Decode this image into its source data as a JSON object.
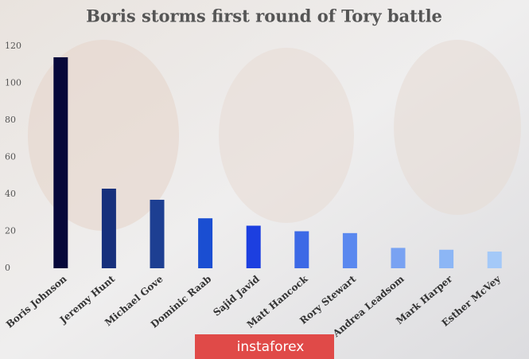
{
  "chart_data": {
    "type": "bar",
    "title": "Boris storms first round of Tory battle",
    "categories": [
      "Boris Johnson",
      "Jeremy Hunt",
      "Michael Gove",
      "Dominic Raab",
      "Sajid Javid",
      "Matt Hancock",
      "Rory Stewart",
      "Andrea Leadsom",
      "Mark Harper",
      "Esther McVey"
    ],
    "values": [
      114,
      43,
      37,
      27,
      23,
      20,
      19,
      11,
      10,
      9
    ],
    "colors": [
      "#07083a",
      "#17307c",
      "#1d3f92",
      "#1a4ed2",
      "#1c3fe0",
      "#3c69e6",
      "#5a88ef",
      "#79a2f2",
      "#8cb6f5",
      "#a4c9f8"
    ],
    "ylim": [
      0,
      120
    ],
    "yticks": [
      0,
      20,
      40,
      60,
      80,
      100,
      120
    ],
    "grid": false
  },
  "watermark": "instaforex"
}
